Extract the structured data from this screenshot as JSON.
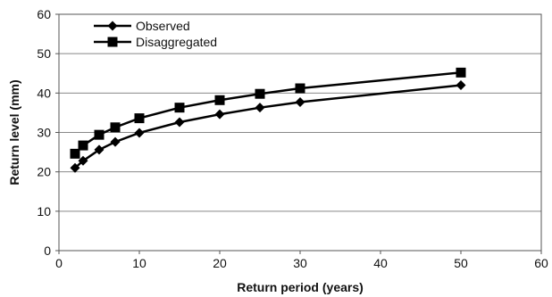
{
  "chart_data": {
    "type": "line",
    "title": "",
    "xlabel": "Return period (years)",
    "ylabel": "Return  level (mm)",
    "xlim": [
      0,
      60
    ],
    "ylim": [
      0,
      60
    ],
    "xticks": [
      0,
      10,
      20,
      30,
      40,
      50,
      60
    ],
    "yticks": [
      0,
      10,
      20,
      30,
      40,
      50,
      60
    ],
    "grid": "horizontal",
    "legend_position": "top-left",
    "series": [
      {
        "name": "Observed",
        "marker": "diamond",
        "color": "#000000",
        "points": [
          [
            2,
            21.0
          ],
          [
            3,
            22.8
          ],
          [
            5,
            25.6
          ],
          [
            7,
            27.6
          ],
          [
            10,
            29.9
          ],
          [
            15,
            32.6
          ],
          [
            20,
            34.6
          ],
          [
            25,
            36.3
          ],
          [
            30,
            37.7
          ],
          [
            50,
            42.0
          ]
        ]
      },
      {
        "name": "Disaggregated",
        "marker": "square",
        "color": "#000000",
        "points": [
          [
            2,
            24.6
          ],
          [
            3,
            26.7
          ],
          [
            5,
            29.4
          ],
          [
            7,
            31.3
          ],
          [
            10,
            33.6
          ],
          [
            15,
            36.3
          ],
          [
            20,
            38.2
          ],
          [
            25,
            39.8
          ],
          [
            30,
            41.2
          ],
          [
            50,
            45.2
          ]
        ]
      }
    ]
  }
}
